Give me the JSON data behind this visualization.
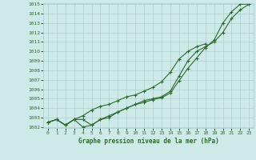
{
  "x": [
    0,
    1,
    2,
    3,
    4,
    5,
    6,
    7,
    8,
    9,
    10,
    11,
    12,
    13,
    14,
    15,
    16,
    17,
    18,
    19,
    20,
    21,
    22,
    23
  ],
  "line1": [
    1002.5,
    1002.8,
    1002.2,
    1002.8,
    1002.8,
    1002.2,
    1002.8,
    1003.0,
    1003.6,
    1004.0,
    1004.4,
    1004.6,
    1004.9,
    1005.1,
    1005.6,
    1006.9,
    1008.2,
    1009.3,
    1010.4,
    1011.2,
    1013.0,
    1014.2,
    1015.0,
    1015.0
  ],
  "line2": [
    1002.5,
    1002.8,
    1002.2,
    1002.8,
    1003.2,
    1003.8,
    1004.2,
    1004.4,
    1004.8,
    1005.2,
    1005.4,
    1005.8,
    1006.2,
    1006.8,
    1007.8,
    1009.2,
    1010.0,
    1010.5,
    1010.8,
    null,
    null,
    null,
    null,
    null
  ],
  "line3": [
    1002.5,
    1002.8,
    1002.2,
    1002.8,
    1002.0,
    1002.2,
    1002.8,
    1003.2,
    1003.6,
    1004.0,
    1004.4,
    1004.8,
    1005.0,
    1005.2,
    1005.8,
    1007.4,
    1009.0,
    1010.0,
    1010.5,
    1011.0,
    1012.0,
    1013.5,
    1014.4,
    1015.0
  ],
  "ylim": [
    1002,
    1015
  ],
  "xlim": [
    -0.5,
    23.5
  ],
  "yticks": [
    1002,
    1003,
    1004,
    1005,
    1006,
    1007,
    1008,
    1009,
    1010,
    1011,
    1012,
    1013,
    1014,
    1015
  ],
  "xticks": [
    0,
    1,
    2,
    3,
    4,
    5,
    6,
    7,
    8,
    9,
    10,
    11,
    12,
    13,
    14,
    15,
    16,
    17,
    18,
    19,
    20,
    21,
    22,
    23
  ],
  "line_color": "#2d6a2d",
  "bg_color": "#ceeae8",
  "grid_color": "#aacfcd",
  "xlabel": "Graphe pression niveau de la mer (hPa)",
  "marker": "+",
  "markersize": 3.0,
  "linewidth": 0.8
}
